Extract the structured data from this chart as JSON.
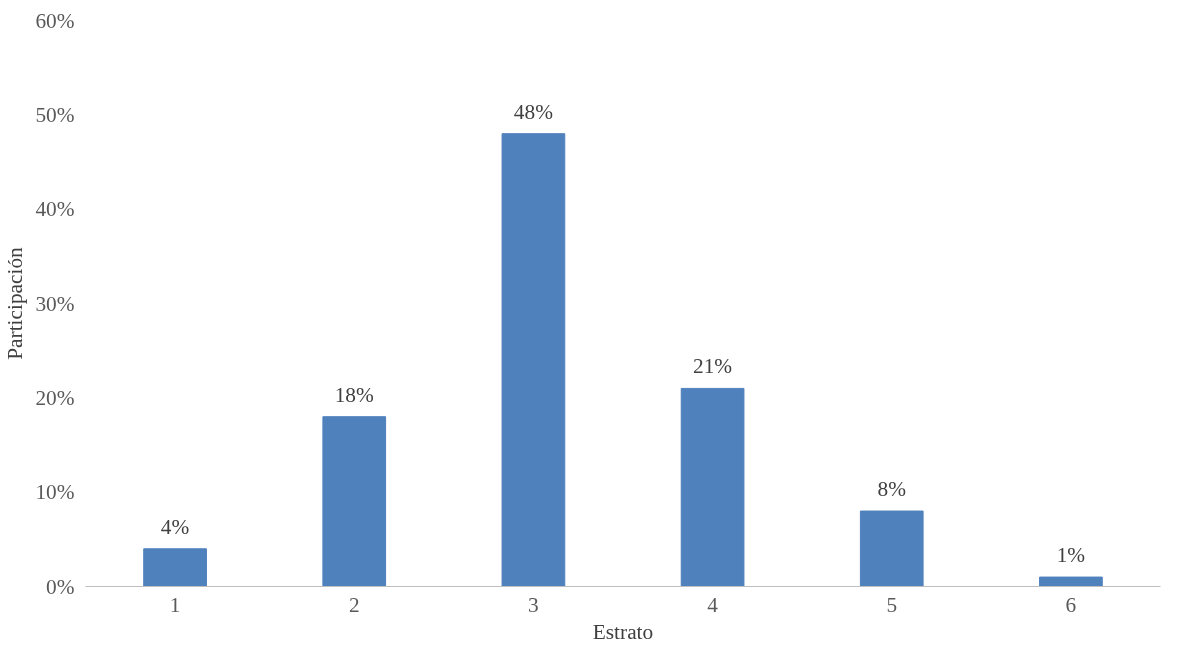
{
  "chart_data": {
    "type": "bar",
    "xlabel": "Estrato",
    "ylabel": "Participación",
    "categories": [
      "1",
      "2",
      "3",
      "4",
      "5",
      "6"
    ],
    "values": [
      4,
      18,
      48,
      21,
      8,
      1
    ],
    "value_labels": [
      "4%",
      "18%",
      "48%",
      "21%",
      "8%",
      "1%"
    ],
    "color": "#4f81bd",
    "ylim": [
      0,
      60
    ],
    "yticks": [
      {
        "value": 0,
        "label": "0%"
      },
      {
        "value": 10,
        "label": "10%"
      },
      {
        "value": 20,
        "label": "20%"
      },
      {
        "value": 30,
        "label": "30%"
      },
      {
        "value": 40,
        "label": "40%"
      },
      {
        "value": 50,
        "label": "50%"
      },
      {
        "value": 60,
        "label": "60%"
      }
    ],
    "grid": false
  }
}
